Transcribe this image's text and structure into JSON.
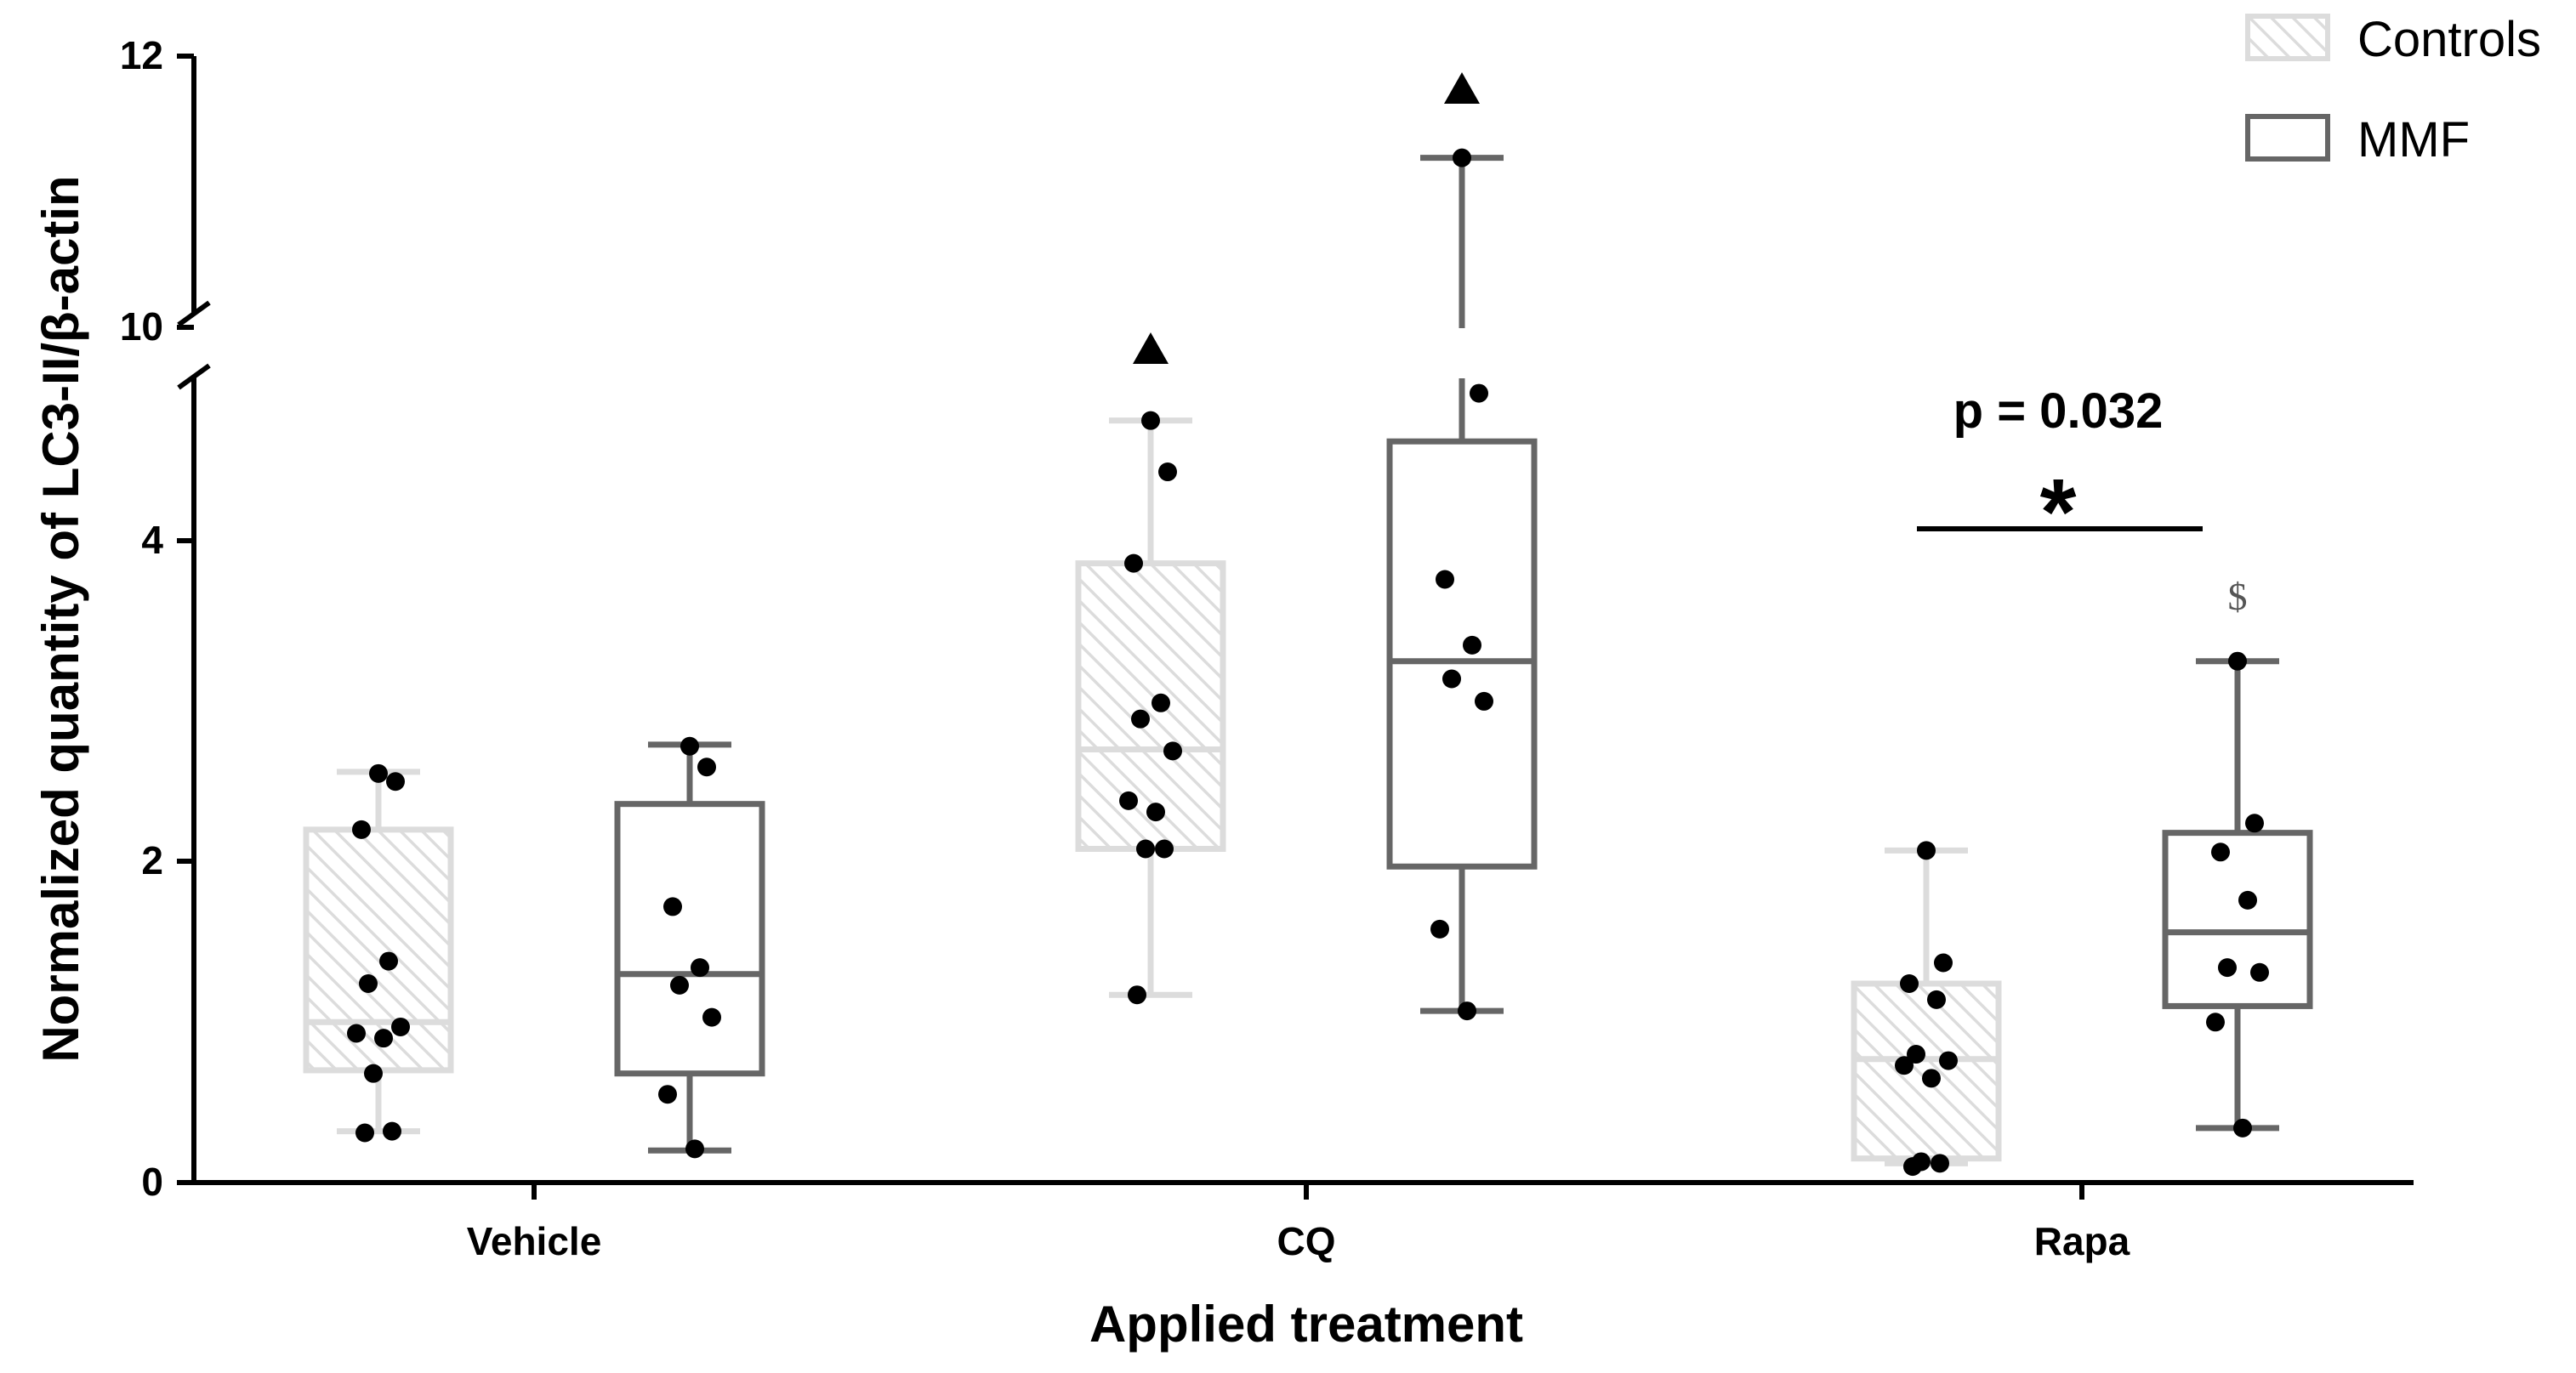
{
  "chart_data": {
    "type": "box",
    "title": "",
    "xlabel": "Applied treatment",
    "ylabel": "Normalized quantity of LC3-II/β-actin",
    "categories": [
      "Vehicle",
      "CQ",
      "Rapa"
    ],
    "ylim_lower": [
      0,
      5
    ],
    "ylim_upper": [
      10,
      12
    ],
    "y_break_between": [
      5,
      10
    ],
    "yticks_lower": [
      "0",
      "2",
      "4"
    ],
    "yticks_upper": [
      "10",
      "12"
    ],
    "legend": {
      "position": "top-right",
      "entries": [
        "Controls",
        "MMF"
      ]
    },
    "series": [
      {
        "name": "Controls",
        "style": "hatched-light-gray",
        "color": "#d9d9d9",
        "boxes": [
          {
            "category": "Vehicle",
            "whisker_low": 0.32,
            "q1": 0.7,
            "median": 1.0,
            "q3": 2.2,
            "whisker_high": 2.56,
            "points": [
              2.55,
              2.5,
              2.2,
              1.38,
              1.24,
              0.97,
              0.93,
              0.9,
              0.68,
              0.32,
              0.31
            ]
          },
          {
            "category": "CQ",
            "whisker_low": 1.17,
            "q1": 2.08,
            "median": 2.7,
            "q3": 3.86,
            "whisker_high": 4.75,
            "points": [
              4.75,
              4.43,
              3.86,
              2.99,
              2.89,
              2.69,
              2.38,
              2.31,
              2.08,
              2.08,
              1.17
            ],
            "annotation": "triangle"
          },
          {
            "category": "Rapa",
            "whisker_low": 0.12,
            "q1": 0.15,
            "median": 0.77,
            "q3": 1.24,
            "whisker_high": 2.07,
            "points": [
              2.07,
              1.37,
              1.24,
              1.14,
              0.8,
              0.76,
              0.73,
              0.65,
              0.13,
              0.12,
              0.1
            ]
          }
        ]
      },
      {
        "name": "MMF",
        "style": "open-dark-gray",
        "color": "#666666",
        "boxes": [
          {
            "category": "Vehicle",
            "whisker_low": 0.2,
            "q1": 0.68,
            "median": 1.3,
            "q3": 2.36,
            "whisker_high": 2.73,
            "points": [
              2.72,
              2.59,
              1.72,
              1.34,
              1.23,
              1.03,
              0.55,
              0.21
            ]
          },
          {
            "category": "CQ",
            "whisker_low": 1.07,
            "q1": 1.97,
            "median": 3.25,
            "q3": 4.62,
            "whisker_high": 11.25,
            "points": [
              11.25,
              4.92,
              3.76,
              3.35,
              3.14,
              3.0,
              1.58,
              1.07
            ],
            "annotation": "triangle"
          },
          {
            "category": "Rapa",
            "whisker_low": 0.34,
            "q1": 1.1,
            "median": 1.56,
            "q3": 2.18,
            "whisker_high": 3.25,
            "points": [
              3.25,
              2.24,
              2.06,
              1.76,
              1.34,
              1.31,
              1.0,
              0.34
            ],
            "annotation": "$"
          }
        ]
      }
    ],
    "significance": {
      "category": "Rapa",
      "p_text": "p = 0.032",
      "symbol": "*"
    }
  }
}
